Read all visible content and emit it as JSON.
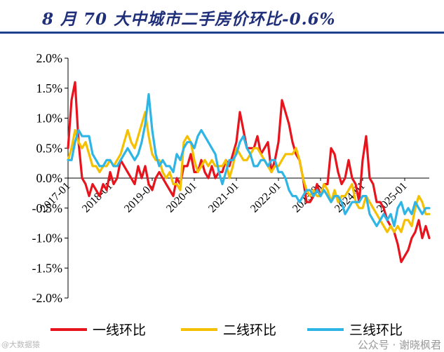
{
  "page_title": "8 月 70 大中城市二手房价环比-0.6%",
  "watermark_left": "@大数据猿",
  "watermark_right": "公众号 · 谢晓枫君",
  "colors": {
    "title": "#1f2f7a",
    "series_1": "#e8141d",
    "series_2": "#f5c000",
    "series_3": "#2fb5e5"
  },
  "chart_data": {
    "type": "line",
    "title": "8 月 70 大中城市二手房价环比-0.6%",
    "ylabel": "",
    "xlabel": "",
    "ylim": [
      -2.0,
      2.0
    ],
    "yticks": [
      2.0,
      1.5,
      1.0,
      0.5,
      0.0,
      -0.5,
      -1.0,
      -1.5,
      -2.0
    ],
    "ytick_labels": [
      "2.0%",
      "1.5%",
      "1.0%",
      "0.5%",
      "0.0%",
      "-0.5%",
      "-1.0%",
      "-1.5%",
      "-2.0%"
    ],
    "x_start_index": 0,
    "xticks": [
      {
        "label": "2017-01",
        "index": 0
      },
      {
        "label": "2018-01",
        "index": 12
      },
      {
        "label": "2019-01",
        "index": 24
      },
      {
        "label": "2020-01",
        "index": 36
      },
      {
        "label": "2021-01",
        "index": 48
      },
      {
        "label": "2022-01",
        "index": 60
      },
      {
        "label": "2023-01",
        "index": 72
      },
      {
        "label": "2024-01",
        "index": 84
      },
      {
        "label": "2025-01",
        "index": 96
      }
    ],
    "n_points": 104,
    "legend_position": "bottom",
    "series": [
      {
        "name": "一线环比",
        "color": "#e8141d",
        "values": [
          0.5,
          1.3,
          1.6,
          0.6,
          0.0,
          -0.1,
          -0.3,
          -0.1,
          -0.2,
          -0.3,
          -0.1,
          -0.2,
          0.1,
          -0.1,
          0.0,
          0.3,
          0.2,
          0.1,
          0.0,
          -0.1,
          0.2,
          0.0,
          0.2,
          -0.1,
          -0.2,
          0.0,
          0.1,
          0.0,
          -0.1,
          -0.2,
          -0.3,
          0.0,
          -0.1,
          0.2,
          0.2,
          0.4,
          0.1,
          0.1,
          0.3,
          0.1,
          0.0,
          0.2,
          0.0,
          0.1,
          0.1,
          0.3,
          0.2,
          0.4,
          0.6,
          1.1,
          0.8,
          0.5,
          0.5,
          0.5,
          0.7,
          0.4,
          0.5,
          0.6,
          0.1,
          0.3,
          0.6,
          1.3,
          1.1,
          0.9,
          0.6,
          0.4,
          0.3,
          0.0,
          -0.4,
          -0.4,
          -0.3,
          -0.1,
          -0.3,
          -0.1,
          -0.1,
          0.5,
          0.4,
          0.1,
          -0.1,
          0.0,
          0.3,
          0.0,
          -0.1,
          -0.4,
          0.3,
          0.7,
          0.0,
          -0.1,
          -0.4,
          -0.4,
          -0.5,
          -0.7,
          -0.8,
          -0.9,
          -1.1,
          -1.4,
          -1.3,
          -1.2,
          -1.0,
          -0.9,
          -0.7,
          -1.0,
          -0.8,
          -1.0
        ],
        "plotted_values": [
          0.5,
          1.3,
          1.6,
          0.6,
          0.0,
          -0.1,
          -0.3,
          -0.1,
          -0.2,
          -0.3,
          -0.1,
          -0.2,
          0.1,
          -0.1,
          0.0,
          0.3,
          0.2,
          0.1,
          0.0,
          -0.1,
          0.2,
          0.0,
          0.2,
          -0.1,
          -0.2,
          0.0,
          0.1,
          0.0,
          -0.1,
          -0.2,
          -0.3,
          0.0,
          -0.1,
          0.2,
          0.2,
          0.4,
          0.1,
          0.1,
          0.3,
          0.1,
          0.0,
          0.2,
          0.0,
          0.1,
          0.1,
          0.3,
          0.2,
          0.4,
          0.6,
          1.1,
          0.8,
          0.5,
          0.5,
          0.5,
          0.7,
          0.4,
          0.5,
          0.6,
          0.1,
          0.3,
          0.6,
          1.3,
          1.1,
          0.9,
          0.6,
          0.4,
          0.3,
          0.0,
          -0.4,
          -0.4,
          -0.3,
          -0.1,
          -0.3,
          -0.1,
          -0.1,
          0.5,
          0.4,
          0.1,
          -0.1,
          0.0,
          0.3,
          0.0,
          -0.1,
          -0.4,
          0.3,
          0.7,
          0.0,
          -0.1,
          -0.4,
          -0.4,
          -0.5,
          -0.7,
          -0.8,
          -0.9,
          -1.1,
          -1.4,
          -1.3,
          -1.2,
          -1.0,
          -0.9,
          -0.7,
          -1.0,
          -0.8,
          -1.0
        ]
      },
      {
        "name": "二线环比",
        "color": "#f5c000",
        "values": [
          0.3,
          0.5,
          0.8,
          0.6,
          0.5,
          0.6,
          0.4,
          0.2,
          0.2,
          0.1,
          0.2,
          0.2,
          0.3,
          0.2,
          0.3,
          0.4,
          0.6,
          0.8,
          0.6,
          0.5,
          0.7,
          0.9,
          1.1,
          0.7,
          0.4,
          0.3,
          0.3,
          0.1,
          0.0,
          0.1,
          -0.1,
          -0.1,
          -0.2,
          0.6,
          0.7,
          0.6,
          0.3,
          0.1,
          0.2,
          0.3,
          0.2,
          0.3,
          0.2,
          0.2,
          0.2,
          0.3,
          0.0,
          0.2,
          0.5,
          0.4,
          0.3,
          0.3,
          0.4,
          0.5,
          0.5,
          0.4,
          0.3,
          0.2,
          0.1,
          0.2,
          0.2,
          0.3,
          0.4,
          0.4,
          0.4,
          0.5,
          0.3,
          0.0,
          -0.2,
          -0.3,
          -0.2,
          -0.3,
          -0.3,
          -0.1,
          -0.2,
          -0.4,
          -0.2,
          -0.4,
          -0.3,
          -0.3,
          -0.2,
          -0.1,
          -0.4,
          -0.5,
          -0.5,
          -0.3,
          -0.4,
          -0.5,
          -0.6,
          -0.7,
          -0.8,
          -0.9,
          -0.8,
          -0.9,
          -0.8,
          -0.9,
          -0.7,
          -0.7,
          -0.8,
          -0.5,
          -0.3,
          -0.4,
          -0.6,
          -0.6
        ],
        "plotted_values": [
          0.3,
          0.5,
          0.8,
          0.6,
          0.5,
          0.6,
          0.4,
          0.2,
          0.2,
          0.1,
          0.2,
          0.2,
          0.3,
          0.2,
          0.3,
          0.4,
          0.6,
          0.8,
          0.6,
          0.5,
          0.7,
          0.9,
          1.1,
          0.7,
          0.4,
          0.3,
          0.3,
          0.1,
          0.0,
          0.1,
          -0.1,
          -0.1,
          -0.2,
          0.6,
          0.7,
          0.6,
          0.3,
          0.1,
          0.2,
          0.3,
          0.2,
          0.3,
          0.2,
          0.2,
          0.2,
          0.3,
          0.0,
          0.2,
          0.5,
          0.4,
          0.3,
          0.3,
          0.4,
          0.5,
          0.5,
          0.4,
          0.3,
          0.2,
          0.1,
          0.2,
          0.2,
          0.3,
          0.4,
          0.4,
          0.4,
          0.5,
          0.3,
          0.0,
          -0.2,
          -0.3,
          -0.2,
          -0.3,
          -0.3,
          -0.1,
          -0.2,
          -0.4,
          -0.2,
          -0.4,
          -0.3,
          -0.3,
          -0.2,
          -0.1,
          -0.4,
          -0.5,
          -0.5,
          -0.3,
          -0.4,
          -0.5,
          -0.6,
          -0.7,
          -0.8,
          -0.9,
          -0.8,
          -0.9,
          -0.8,
          -0.9,
          -0.7,
          -0.7,
          -0.8,
          -0.5,
          -0.3,
          -0.4,
          -0.6,
          -0.6
        ]
      },
      {
        "name": "三线环比",
        "color": "#2fb5e5",
        "values": [
          0.3,
          0.3,
          0.6,
          0.8,
          0.7,
          0.7,
          0.7,
          0.4,
          0.3,
          0.2,
          0.2,
          0.3,
          0.3,
          0.2,
          0.2,
          0.3,
          0.4,
          0.5,
          0.4,
          0.3,
          0.4,
          0.6,
          0.9,
          1.4,
          0.8,
          0.4,
          0.2,
          0.3,
          0.2,
          0.2,
          0.1,
          0.4,
          0.3,
          0.5,
          0.6,
          0.6,
          0.5,
          0.7,
          0.8,
          0.7,
          0.6,
          0.5,
          0.4,
          0.1,
          -0.1,
          0.1,
          0.3,
          0.3,
          0.4,
          0.6,
          0.7,
          0.5,
          0.4,
          0.2,
          0.2,
          0.3,
          0.3,
          0.2,
          0.3,
          0.3,
          0.1,
          0.1,
          0.0,
          -0.2,
          -0.3,
          -0.3,
          -0.4,
          -0.3,
          -0.2,
          -0.2,
          -0.3,
          -0.2,
          -0.3,
          -0.2,
          -0.3,
          -0.4,
          -0.3,
          -0.3,
          -0.4,
          -0.6,
          -0.5,
          -0.4,
          -0.4,
          -0.4,
          -0.3,
          -0.3,
          -0.6,
          -0.7,
          -0.8,
          -0.7,
          -0.6,
          -0.7,
          -0.6,
          -0.8,
          -0.5,
          -0.4,
          -0.6,
          -0.5,
          -0.6,
          -0.4,
          -0.5,
          -0.6,
          -0.5,
          -0.5
        ],
        "plotted_values": [
          0.3,
          0.3,
          0.6,
          0.8,
          0.7,
          0.7,
          0.7,
          0.4,
          0.3,
          0.2,
          0.2,
          0.3,
          0.3,
          0.2,
          0.2,
          0.3,
          0.4,
          0.5,
          0.4,
          0.3,
          0.4,
          0.6,
          0.9,
          1.4,
          0.8,
          0.4,
          0.2,
          0.3,
          0.2,
          0.2,
          0.1,
          0.4,
          0.3,
          0.5,
          0.6,
          0.6,
          0.5,
          0.7,
          0.8,
          0.7,
          0.6,
          0.5,
          0.4,
          0.1,
          -0.1,
          0.1,
          0.3,
          0.3,
          0.4,
          0.6,
          0.7,
          0.5,
          0.4,
          0.2,
          0.2,
          0.3,
          0.3,
          0.2,
          0.3,
          0.3,
          0.1,
          0.1,
          0.0,
          -0.2,
          -0.3,
          -0.3,
          -0.4,
          -0.3,
          -0.2,
          -0.2,
          -0.3,
          -0.2,
          -0.3,
          -0.2,
          -0.3,
          -0.4,
          -0.3,
          -0.3,
          -0.4,
          -0.6,
          -0.5,
          -0.4,
          -0.4,
          -0.4,
          -0.3,
          -0.3,
          -0.6,
          -0.7,
          -0.8,
          -0.7,
          -0.6,
          -0.7,
          -0.6,
          -0.8,
          -0.5,
          -0.4,
          -0.6,
          -0.5,
          -0.6,
          -0.4,
          -0.5,
          -0.6,
          -0.5,
          -0.5
        ]
      }
    ]
  }
}
